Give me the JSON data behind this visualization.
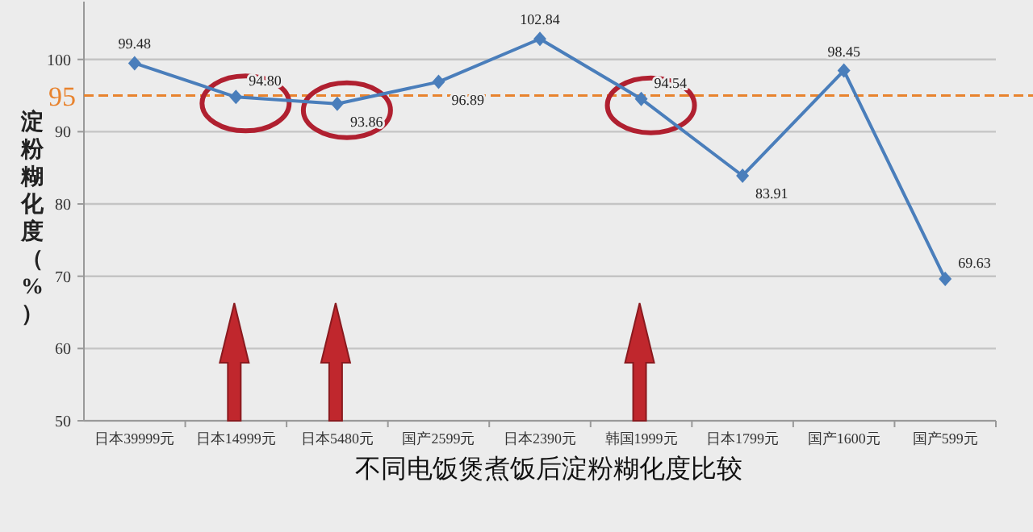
{
  "chart_data": {
    "type": "line",
    "xlabel": "不同电饭煲煮饭后淀粉糊化度比较",
    "ylabel": "淀粉糊化度（%）",
    "categories": [
      "日本39999元",
      "日本14999元",
      "日本5480元",
      "国产2599元",
      "日本2390元",
      "韩国1999元",
      "日本1799元",
      "国产1600元",
      "国产599元"
    ],
    "series": [
      {
        "color": "#4a7ebb",
        "values": [
          99.48,
          94.8,
          93.86,
          96.89,
          102.84,
          94.54,
          83.91,
          98.45,
          69.63
        ],
        "value_labels": [
          "99.48",
          "94.80",
          "93.86",
          "96.89",
          "102.84",
          "94.54",
          "83.91",
          "98.45",
          "69.63"
        ]
      }
    ],
    "marker": "diamond",
    "grid": "y",
    "ylim": [
      50,
      108
    ],
    "yticks": [
      50,
      60,
      70,
      80,
      90,
      100
    ],
    "ref_lines": [
      {
        "axis": "y",
        "value": 95,
        "label": "95",
        "color": "#e8832e",
        "line_style": "dashed"
      }
    ]
  }
}
